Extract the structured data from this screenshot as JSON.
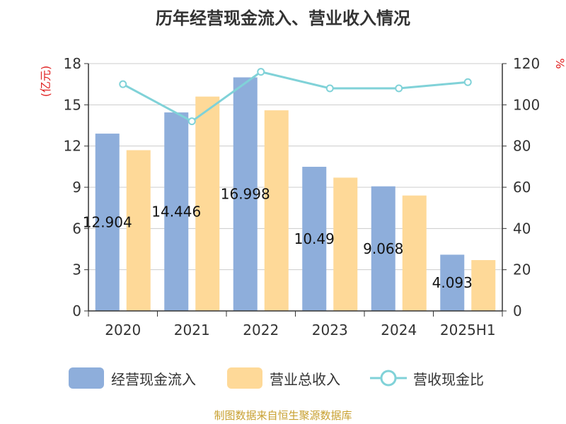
{
  "chart_data": {
    "type": "bar",
    "title": "历年经营现金流入、营业收入情况",
    "categories": [
      "2020",
      "2021",
      "2022",
      "2023",
      "2024",
      "2025H1"
    ],
    "left_axis": {
      "label": "(亿元)",
      "ticks": [
        "0",
        "3",
        "6",
        "9",
        "12",
        "15",
        "18"
      ],
      "ylim": [
        0,
        18
      ]
    },
    "right_axis": {
      "label": "%",
      "ticks": [
        "0",
        "20",
        "40",
        "60",
        "80",
        "100",
        "120"
      ],
      "ylim": [
        0,
        120
      ]
    },
    "series": [
      {
        "name": "经营现金流入",
        "kind": "bar",
        "axis": "left",
        "color": "#8eaedb",
        "values": [
          12.904,
          14.446,
          16.998,
          10.49,
          9.068,
          4.093
        ],
        "data_labels": [
          "12.904",
          "14.446",
          "16.998",
          "10.49",
          "9.068",
          "4.093"
        ]
      },
      {
        "name": "营业总收入",
        "kind": "bar",
        "axis": "left",
        "color": "#fed998",
        "values": [
          11.7,
          15.6,
          14.6,
          9.7,
          8.4,
          3.7
        ]
      },
      {
        "name": "营收现金比",
        "kind": "line",
        "axis": "right",
        "color": "#80d2d8",
        "values": [
          110,
          92,
          116,
          108,
          108,
          111
        ]
      }
    ],
    "grid": true,
    "legend_position": "bottom"
  },
  "source": "制图数据来自恒生聚源数据库"
}
